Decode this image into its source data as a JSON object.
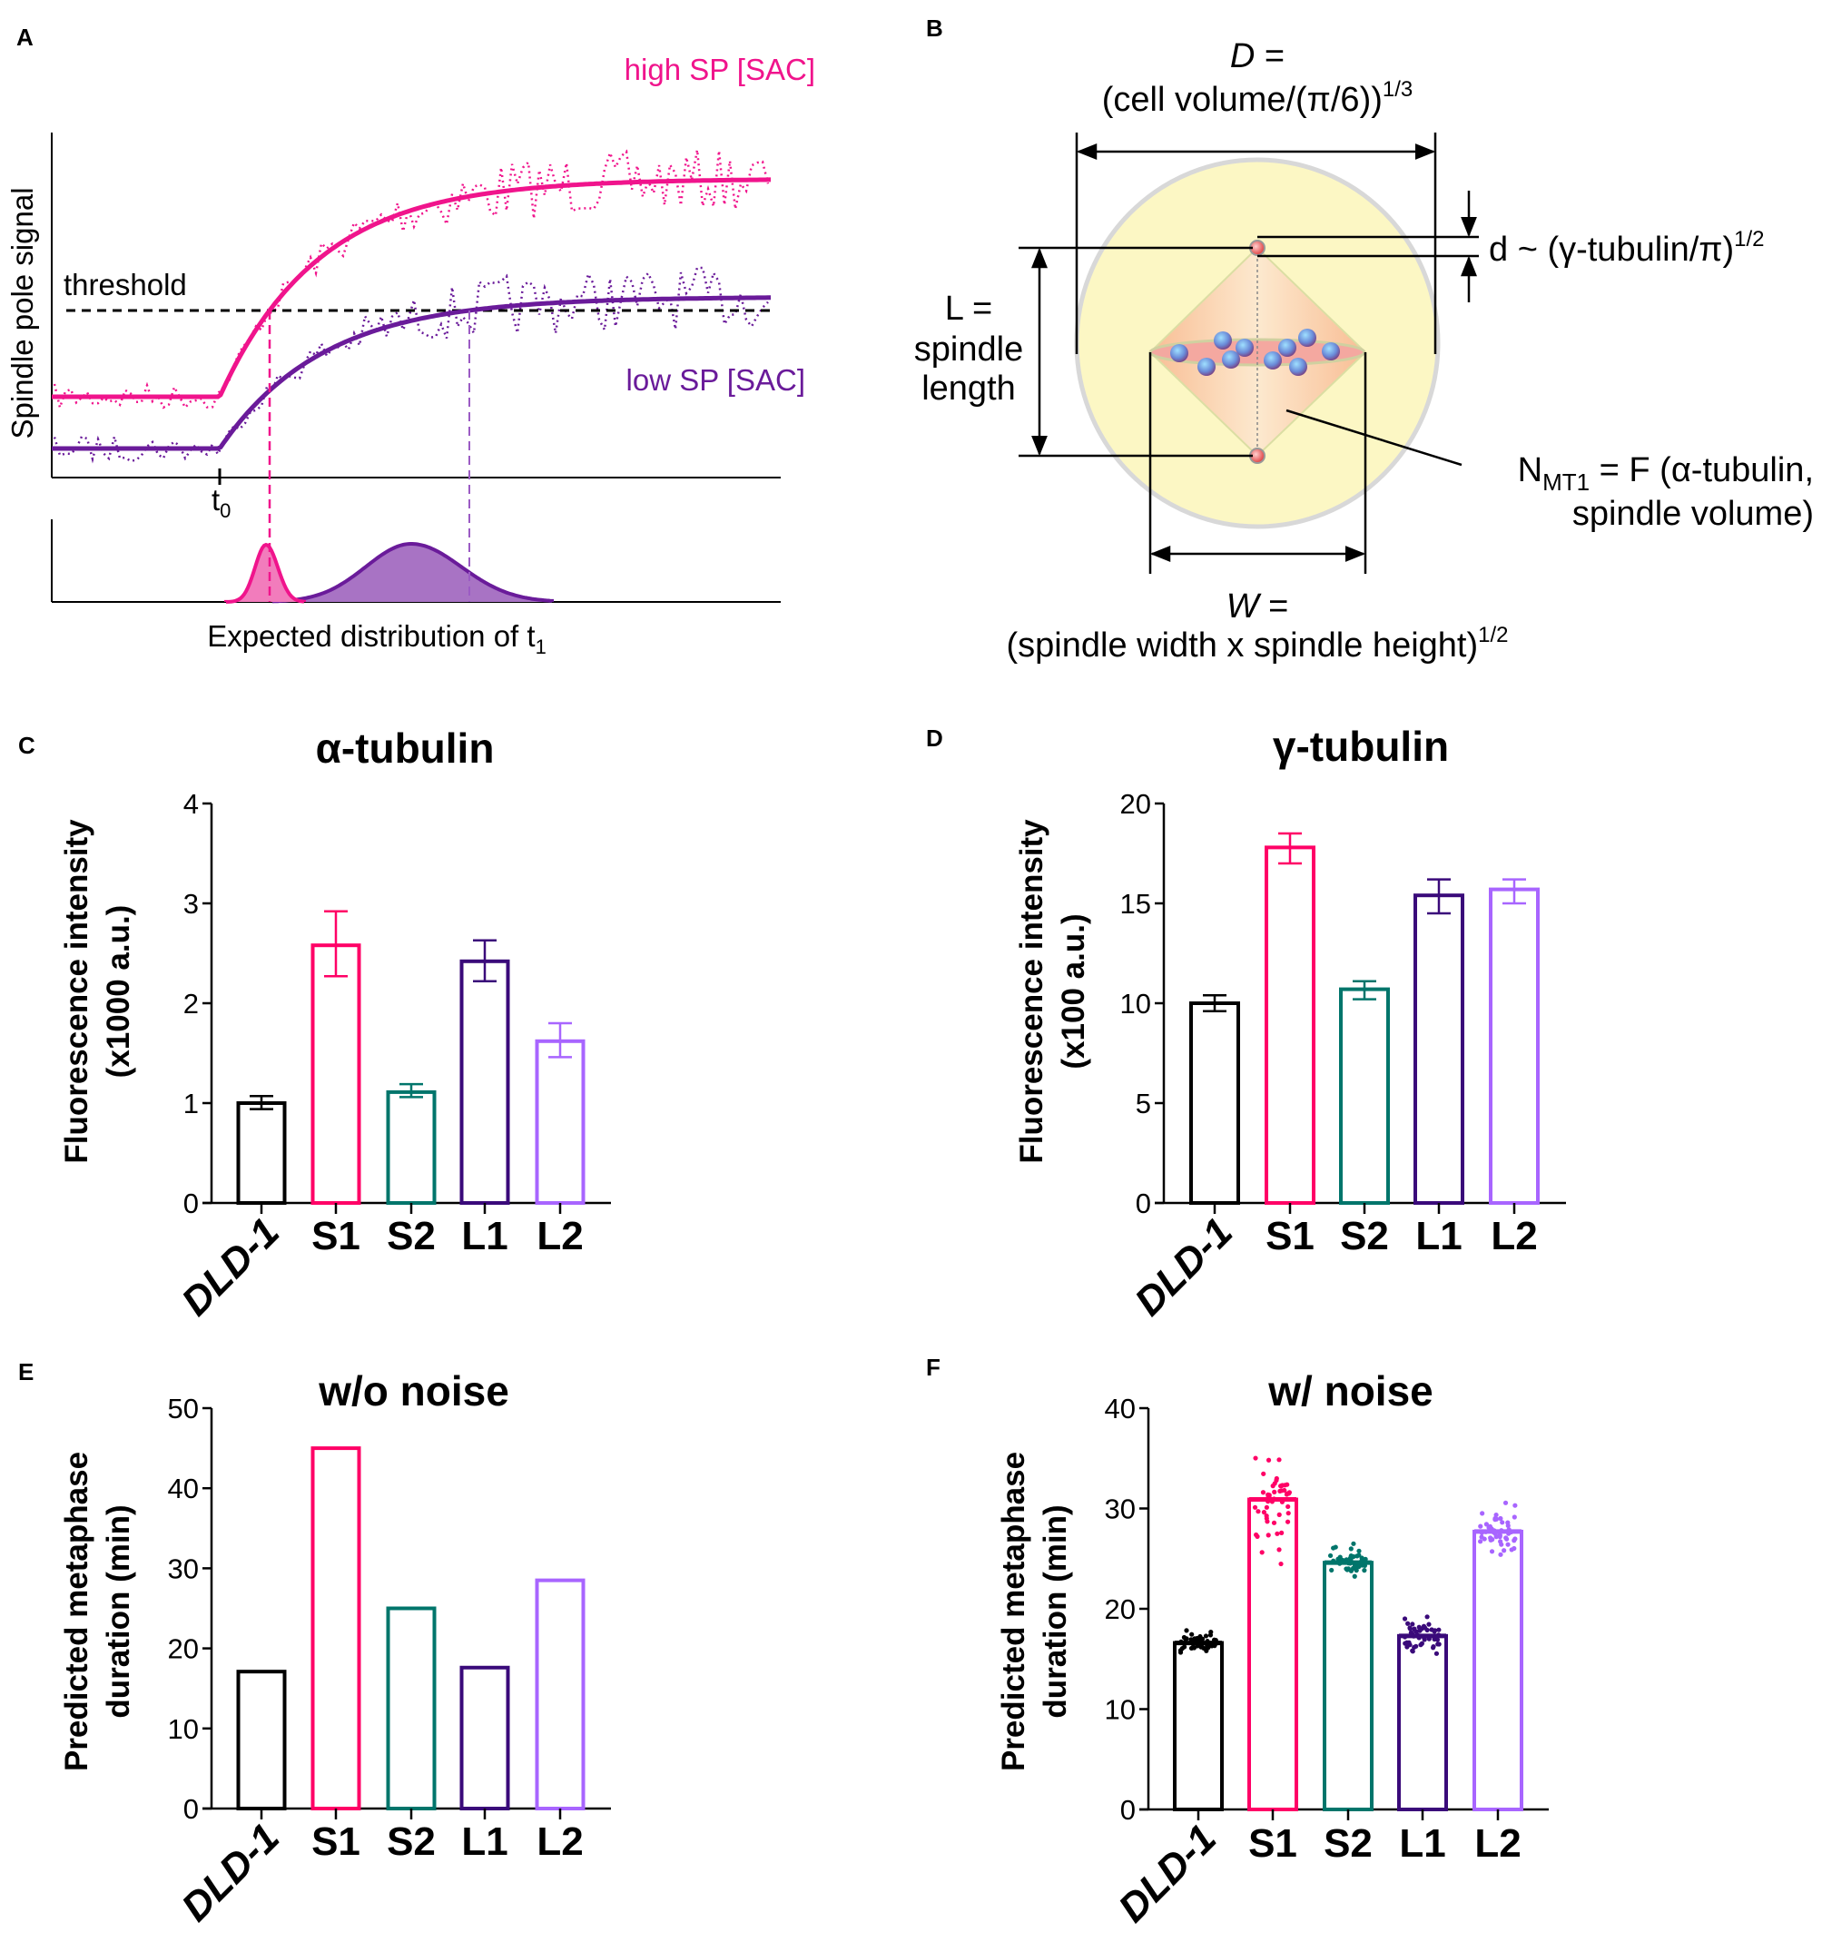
{
  "panel_labels": {
    "a": "A",
    "b": "B",
    "c": "C",
    "d": "D",
    "e": "E",
    "f": "F"
  },
  "panel_a": {
    "y_label": "Spindle pole signal",
    "high_label": "high SP [SAC]",
    "low_label": "low SP [SAC]",
    "threshold_label": "threshold",
    "t0_main": "t",
    "t0_sub": "0",
    "x_label_main": "Expected distribution of t",
    "x_label_sub": "1",
    "colors": {
      "high": "#f0148c",
      "low": "#6a1b9a",
      "low_fill": "#a873c4",
      "high_fill": "#f27cbc"
    }
  },
  "panel_b": {
    "D_label": "D",
    "D_eq": " =",
    "D_formula": "(cell volume/(π/6))",
    "D_exp": "1/3",
    "L_line1": "L =",
    "L_line2": "spindle",
    "L_line3": "length",
    "d_formula": "d ~ (γ-tubulin/π)",
    "d_exp": "1/2",
    "N_main": "N",
    "N_sub": "MT1",
    "N_rest": " = F (α-tubulin,",
    "N_line2": "spindle volume)",
    "W_label": "W",
    "W_eq": " =",
    "W_formula": "(spindle width x spindle height)",
    "W_exp": "1/2"
  },
  "chart_data": [
    {
      "type": "bar",
      "panel": "C",
      "title": "α-tubulin",
      "ylabel": [
        "Fluorescence intensity",
        "(x1000 a.u.)"
      ],
      "categories": [
        "DLD-1",
        "S1",
        "S2",
        "L1",
        "L2"
      ],
      "values": [
        1.0,
        2.58,
        1.11,
        2.42,
        1.62
      ],
      "error_low": [
        0.94,
        2.27,
        1.06,
        2.22,
        1.46
      ],
      "error_high": [
        1.07,
        2.92,
        1.19,
        2.63,
        1.8
      ],
      "ylim": [
        0,
        4
      ],
      "yticks": [
        "0",
        "1",
        "2",
        "3",
        "4"
      ],
      "colors": [
        "#000000",
        "#ff0066",
        "#00756b",
        "#3a0a7a",
        "#a865ff"
      ]
    },
    {
      "type": "bar",
      "panel": "D",
      "title": "γ-tubulin",
      "ylabel": [
        "Fluorescence intensity",
        "(x100 a.u.)"
      ],
      "categories": [
        "DLD-1",
        "S1",
        "S2",
        "L1",
        "L2"
      ],
      "values": [
        10.0,
        17.8,
        10.7,
        15.4,
        15.7
      ],
      "error_low": [
        9.6,
        17.0,
        10.2,
        14.5,
        15.0
      ],
      "error_high": [
        10.4,
        18.5,
        11.1,
        16.2,
        16.2
      ],
      "ylim": [
        0,
        20
      ],
      "yticks": [
        "0",
        "5",
        "10",
        "15",
        "20"
      ],
      "colors": [
        "#000000",
        "#ff0066",
        "#00756b",
        "#3a0a7a",
        "#a865ff"
      ]
    },
    {
      "type": "bar",
      "panel": "E",
      "title": "w/o noise",
      "ylabel": [
        "Predicted metaphase",
        "duration (min)"
      ],
      "categories": [
        "DLD-1",
        "S1",
        "S2",
        "L1",
        "L2"
      ],
      "values": [
        17.1,
        45.0,
        25.0,
        17.6,
        28.5
      ],
      "ylim": [
        0,
        50
      ],
      "yticks": [
        "0",
        "10",
        "20",
        "30",
        "40",
        "50"
      ],
      "colors": [
        "#000000",
        "#ff0066",
        "#00756b",
        "#3a0a7a",
        "#a865ff"
      ]
    },
    {
      "type": "bar",
      "panel": "F",
      "title": "w/ noise",
      "ylabel": [
        "Predicted metaphase",
        "duration (min)"
      ],
      "categories": [
        "DLD-1",
        "S1",
        "S2",
        "L1",
        "L2"
      ],
      "values": [
        16.6,
        30.9,
        24.6,
        17.3,
        27.7
      ],
      "points_min": [
        15.0,
        23.2,
        22.9,
        15.0,
        24.9
      ],
      "points_max": [
        18.5,
        37.0,
        27.3,
        19.7,
        31.6
      ],
      "points_per_group": 50,
      "ylim": [
        0,
        40
      ],
      "yticks": [
        "0",
        "10",
        "20",
        "30",
        "40"
      ],
      "colors": [
        "#000000",
        "#ff0066",
        "#00756b",
        "#3a0a7a",
        "#a865ff"
      ]
    }
  ]
}
